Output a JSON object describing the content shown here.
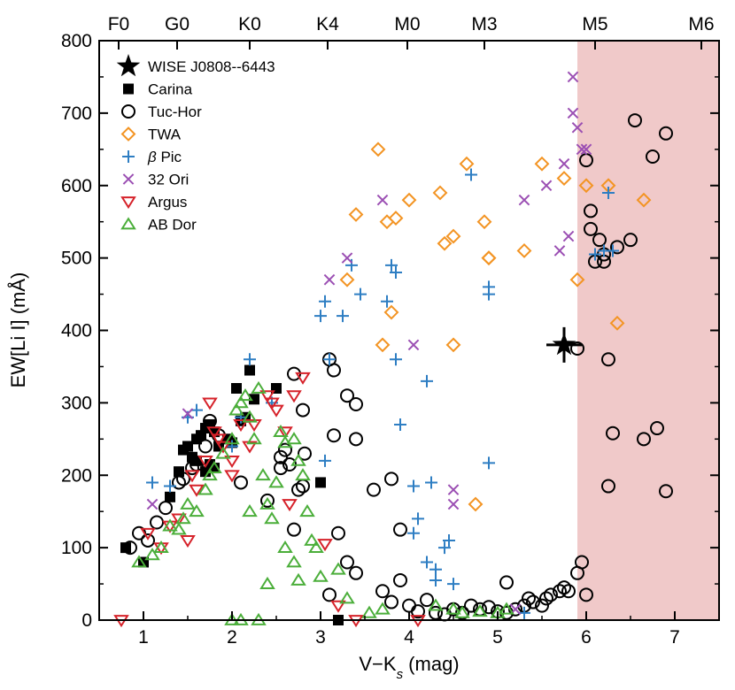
{
  "chart_data": {
    "type": "scatter",
    "xlabel": "V−K",
    "xlabel_sub": "s",
    "xlabel_unit": " (mag)",
    "ylabel": "EW[Li I] (mÅ)",
    "xlim": [
      0.5,
      7.5
    ],
    "ylim": [
      0,
      800
    ],
    "x_ticks": [
      "1",
      "2",
      "3",
      "4",
      "5",
      "6",
      "7"
    ],
    "y_ticks": [
      "0",
      "100",
      "200",
      "300",
      "400",
      "500",
      "600",
      "700",
      "800"
    ],
    "shaded_region": {
      "x_start": 5.9,
      "x_end": 7.5,
      "color": "#f0c9c9"
    },
    "top_axis": [
      {
        "label": "F0",
        "x": 0.72
      },
      {
        "label": "G0",
        "x": 1.38
      },
      {
        "label": "K0",
        "x": 2.2
      },
      {
        "label": "K4",
        "x": 3.08
      },
      {
        "label": "M0",
        "x": 3.98
      },
      {
        "label": "M3",
        "x": 4.85
      },
      {
        "label": "M5",
        "x": 6.1
      },
      {
        "label": "M6",
        "x": 7.3
      }
    ],
    "legend_position": "top-left",
    "series": [
      {
        "name": "WISE J0808--6443",
        "marker": "star",
        "color": "#000000",
        "points": [
          [
            5.75,
            380
          ]
        ],
        "xerr": 0.2
      },
      {
        "name": "Carina",
        "marker": "square",
        "color": "#000000",
        "points": [
          [
            0.8,
            100
          ],
          [
            1.0,
            80
          ],
          [
            1.3,
            170
          ],
          [
            1.4,
            205
          ],
          [
            1.45,
            235
          ],
          [
            1.5,
            240
          ],
          [
            1.55,
            225
          ],
          [
            1.6,
            250
          ],
          [
            1.65,
            255
          ],
          [
            1.7,
            265
          ],
          [
            1.75,
            270
          ],
          [
            1.8,
            260
          ],
          [
            1.75,
            215
          ],
          [
            1.8,
            210
          ],
          [
            1.7,
            205
          ],
          [
            1.85,
            240
          ],
          [
            1.6,
            220
          ],
          [
            1.95,
            250
          ],
          [
            2.0,
            245
          ],
          [
            2.05,
            320
          ],
          [
            2.1,
            275
          ],
          [
            2.15,
            280
          ],
          [
            2.2,
            345
          ],
          [
            2.25,
            305
          ],
          [
            2.5,
            320
          ],
          [
            3.0,
            190
          ],
          [
            3.2,
            0
          ]
        ]
      },
      {
        "name": "Tuc-Hor",
        "marker": "circle",
        "color": "#000000",
        "points": [
          [
            0.85,
            100
          ],
          [
            0.95,
            120
          ],
          [
            1.05,
            110
          ],
          [
            1.15,
            135
          ],
          [
            1.25,
            155
          ],
          [
            1.4,
            190
          ],
          [
            1.45,
            195
          ],
          [
            1.55,
            210
          ],
          [
            1.6,
            215
          ],
          [
            1.7,
            240
          ],
          [
            1.75,
            275
          ],
          [
            1.85,
            255
          ],
          [
            2.1,
            190
          ],
          [
            2.4,
            165
          ],
          [
            2.55,
            225
          ],
          [
            2.55,
            210
          ],
          [
            2.6,
            235
          ],
          [
            2.65,
            215
          ],
          [
            2.75,
            180
          ],
          [
            2.8,
            185
          ],
          [
            2.82,
            230
          ],
          [
            2.7,
            340
          ],
          [
            2.8,
            290
          ],
          [
            2.7,
            125
          ],
          [
            3.1,
            360
          ],
          [
            3.15,
            345
          ],
          [
            3.3,
            310
          ],
          [
            3.4,
            298
          ],
          [
            3.15,
            255
          ],
          [
            3.4,
            250
          ],
          [
            3.2,
            120
          ],
          [
            3.3,
            80
          ],
          [
            3.1,
            35
          ],
          [
            3.4,
            65
          ],
          [
            3.6,
            180
          ],
          [
            3.8,
            195
          ],
          [
            3.9,
            125
          ],
          [
            3.7,
            40
          ],
          [
            3.8,
            25
          ],
          [
            3.9,
            55
          ],
          [
            4.0,
            20
          ],
          [
            4.1,
            12
          ],
          [
            4.2,
            28
          ],
          [
            4.3,
            10
          ],
          [
            4.4,
            8
          ],
          [
            4.5,
            15
          ],
          [
            4.6,
            10
          ],
          [
            4.7,
            20
          ],
          [
            4.8,
            15
          ],
          [
            4.9,
            18
          ],
          [
            5.0,
            12
          ],
          [
            5.1,
            10
          ],
          [
            5.2,
            15
          ],
          [
            5.3,
            20
          ],
          [
            5.35,
            30
          ],
          [
            5.4,
            25
          ],
          [
            5.1,
            52
          ],
          [
            5.5,
            20
          ],
          [
            5.55,
            30
          ],
          [
            5.6,
            35
          ],
          [
            5.7,
            40
          ],
          [
            5.75,
            45
          ],
          [
            5.8,
            40
          ],
          [
            5.9,
            65
          ],
          [
            5.95,
            80
          ],
          [
            5.9,
            375
          ],
          [
            6.0,
            635
          ],
          [
            6.05,
            565
          ],
          [
            6.05,
            540
          ],
          [
            6.1,
            495
          ],
          [
            6.15,
            525
          ],
          [
            6.2,
            505
          ],
          [
            6.2,
            495
          ],
          [
            6.25,
            360
          ],
          [
            6.3,
            258
          ],
          [
            6.35,
            515
          ],
          [
            6.5,
            525
          ],
          [
            6.55,
            690
          ],
          [
            6.65,
            250
          ],
          [
            6.75,
            640
          ],
          [
            6.8,
            265
          ],
          [
            6.9,
            672
          ],
          [
            6.9,
            178
          ],
          [
            6.25,
            185
          ],
          [
            6.0,
            35
          ]
        ]
      },
      {
        "name": "TWA",
        "marker": "diamond",
        "color": "#f39423",
        "points": [
          [
            3.3,
            470
          ],
          [
            3.4,
            560
          ],
          [
            3.65,
            650
          ],
          [
            3.7,
            380
          ],
          [
            3.75,
            550
          ],
          [
            3.8,
            425
          ],
          [
            3.85,
            555
          ],
          [
            4.0,
            580
          ],
          [
            4.35,
            590
          ],
          [
            4.4,
            520
          ],
          [
            4.5,
            530
          ],
          [
            4.5,
            380
          ],
          [
            4.65,
            630
          ],
          [
            4.85,
            550
          ],
          [
            4.9,
            500
          ],
          [
            4.9,
            500
          ],
          [
            4.75,
            160
          ],
          [
            5.3,
            510
          ],
          [
            5.5,
            630
          ],
          [
            5.75,
            610
          ],
          [
            5.9,
            470
          ],
          [
            6.0,
            600
          ],
          [
            6.25,
            600
          ],
          [
            6.35,
            410
          ],
          [
            6.65,
            580
          ]
        ]
      },
      {
        "name": "β Pic",
        "marker": "plus",
        "color": "#2e7ec3",
        "points": [
          [
            1.1,
            190
          ],
          [
            1.3,
            185
          ],
          [
            1.5,
            280
          ],
          [
            1.6,
            290
          ],
          [
            2.0,
            240
          ],
          [
            2.1,
            280
          ],
          [
            2.2,
            360
          ],
          [
            2.45,
            300
          ],
          [
            3.0,
            420
          ],
          [
            3.05,
            440
          ],
          [
            3.25,
            420
          ],
          [
            3.35,
            490
          ],
          [
            3.45,
            450
          ],
          [
            3.05,
            220
          ],
          [
            3.1,
            360
          ],
          [
            3.75,
            440
          ],
          [
            3.8,
            490
          ],
          [
            3.85,
            480
          ],
          [
            3.85,
            360
          ],
          [
            3.9,
            270
          ],
          [
            4.2,
            330
          ],
          [
            4.05,
            185
          ],
          [
            4.1,
            140
          ],
          [
            4.05,
            120
          ],
          [
            4.25,
            190
          ],
          [
            4.2,
            80
          ],
          [
            4.3,
            70
          ],
          [
            4.3,
            55
          ],
          [
            4.5,
            50
          ],
          [
            4.4,
            100
          ],
          [
            4.45,
            110
          ],
          [
            4.7,
            615
          ],
          [
            4.9,
            460
          ],
          [
            4.9,
            450
          ],
          [
            4.9,
            217
          ],
          [
            5.3,
            10
          ],
          [
            6.1,
            505
          ],
          [
            6.2,
            510
          ],
          [
            6.25,
            590
          ],
          [
            6.3,
            510
          ]
        ]
      },
      {
        "name": "32 Ori",
        "marker": "x",
        "color": "#9b4fb3",
        "points": [
          [
            1.1,
            160
          ],
          [
            1.5,
            285
          ],
          [
            3.1,
            470
          ],
          [
            3.3,
            500
          ],
          [
            3.7,
            580
          ],
          [
            4.05,
            380
          ],
          [
            4.5,
            180
          ],
          [
            4.5,
            160
          ],
          [
            5.3,
            580
          ],
          [
            5.55,
            600
          ],
          [
            5.75,
            630
          ],
          [
            5.7,
            510
          ],
          [
            5.8,
            530
          ],
          [
            5.85,
            750
          ],
          [
            5.85,
            700
          ],
          [
            5.9,
            680
          ],
          [
            5.95,
            650
          ],
          [
            6.0,
            650
          ],
          [
            5.2,
            15
          ]
        ]
      },
      {
        "name": "Argus",
        "marker": "triangle-down",
        "color": "#d6222a",
        "points": [
          [
            0.75,
            0
          ],
          [
            1.05,
            120
          ],
          [
            1.2,
            100
          ],
          [
            1.3,
            130
          ],
          [
            1.4,
            140
          ],
          [
            1.5,
            110
          ],
          [
            1.55,
            200
          ],
          [
            1.6,
            180
          ],
          [
            1.7,
            220
          ],
          [
            1.75,
            300
          ],
          [
            1.8,
            260
          ],
          [
            1.85,
            250
          ],
          [
            1.9,
            240
          ],
          [
            2.0,
            220
          ],
          [
            2.0,
            200
          ],
          [
            2.1,
            270
          ],
          [
            2.2,
            240
          ],
          [
            2.25,
            270
          ],
          [
            2.4,
            310
          ],
          [
            2.45,
            300
          ],
          [
            2.5,
            290
          ],
          [
            2.6,
            260
          ],
          [
            2.65,
            160
          ],
          [
            2.7,
            310
          ],
          [
            2.8,
            335
          ],
          [
            3.05,
            105
          ],
          [
            3.2,
            20
          ],
          [
            3.4,
            0
          ],
          [
            4.1,
            0
          ]
        ]
      },
      {
        "name": "AB Dor",
        "marker": "triangle-up",
        "color": "#4bae3a",
        "points": [
          [
            0.95,
            80
          ],
          [
            1.1,
            90
          ],
          [
            1.2,
            100
          ],
          [
            1.3,
            130
          ],
          [
            1.4,
            125
          ],
          [
            1.45,
            140
          ],
          [
            1.5,
            160
          ],
          [
            1.6,
            150
          ],
          [
            1.7,
            180
          ],
          [
            1.75,
            200
          ],
          [
            1.8,
            210
          ],
          [
            1.9,
            230
          ],
          [
            2.0,
            250
          ],
          [
            2.05,
            290
          ],
          [
            2.1,
            300
          ],
          [
            2.15,
            310
          ],
          [
            2.2,
            280
          ],
          [
            2.25,
            250
          ],
          [
            2.3,
            320
          ],
          [
            2.35,
            200
          ],
          [
            2.2,
            150
          ],
          [
            2.4,
            160
          ],
          [
            2.45,
            140
          ],
          [
            2.5,
            190
          ],
          [
            2.55,
            260
          ],
          [
            2.6,
            245
          ],
          [
            2.7,
            250
          ],
          [
            2.75,
            220
          ],
          [
            2.8,
            200
          ],
          [
            2.85,
            150
          ],
          [
            2.9,
            110
          ],
          [
            2.95,
            100
          ],
          [
            2.6,
            100
          ],
          [
            2.7,
            80
          ],
          [
            2.75,
            55
          ],
          [
            2.4,
            50
          ],
          [
            2.3,
            0
          ],
          [
            2.1,
            0
          ],
          [
            3.0,
            60
          ],
          [
            3.2,
            70
          ],
          [
            3.3,
            30
          ],
          [
            3.55,
            10
          ],
          [
            3.7,
            15
          ],
          [
            4.3,
            20
          ],
          [
            4.5,
            15
          ],
          [
            4.6,
            10
          ],
          [
            4.8,
            12
          ],
          [
            5.0,
            10
          ],
          [
            5.1,
            15
          ],
          [
            2.0,
            0
          ]
        ]
      }
    ]
  }
}
